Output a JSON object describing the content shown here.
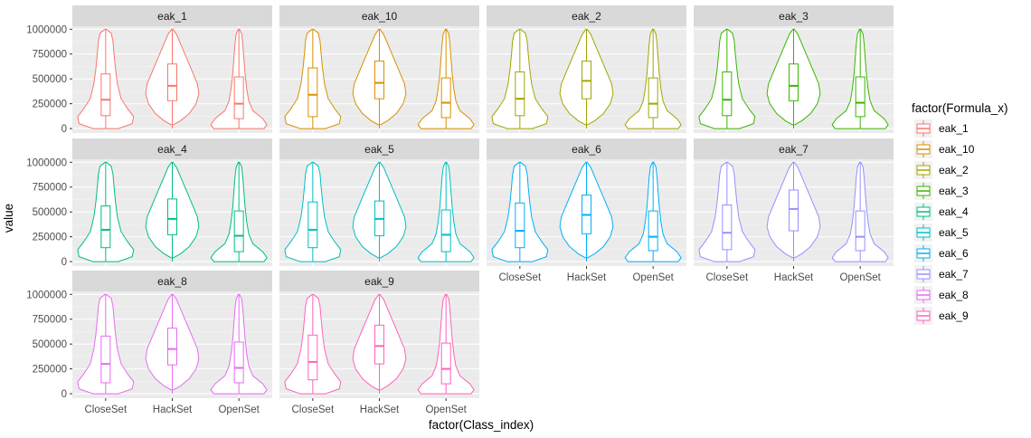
{
  "chart_data": {
    "type": "violin",
    "xlabel": "factor(Class_index)",
    "ylabel": "value",
    "categories": [
      "CloseSet",
      "HackSet",
      "OpenSet"
    ],
    "y_ticks": [
      0,
      250000,
      500000,
      750000,
      1000000
    ],
    "y_tick_labels": [
      "0",
      "250000",
      "500000",
      "750000",
      "1000000"
    ],
    "ylim": [
      -45000,
      1030000
    ],
    "grid": true,
    "legend": {
      "title": "factor(Formula_x)",
      "position": "right",
      "entries": [
        "eak_1",
        "eak_10",
        "eak_2",
        "eak_3",
        "eak_4",
        "eak_5",
        "eak_6",
        "eak_7",
        "eak_8",
        "eak_9"
      ]
    },
    "series": [
      {
        "name": "eak_1",
        "color": "#F8766D",
        "boxes": [
          {
            "category": "CloseSet",
            "q1": 130000,
            "median": 290000,
            "q3": 550000
          },
          {
            "category": "HackSet",
            "q1": 280000,
            "median": 430000,
            "q3": 650000
          },
          {
            "category": "OpenSet",
            "q1": 100000,
            "median": 250000,
            "q3": 520000
          }
        ]
      },
      {
        "name": "eak_10",
        "color": "#D89000",
        "boxes": [
          {
            "category": "CloseSet",
            "q1": 120000,
            "median": 340000,
            "q3": 610000
          },
          {
            "category": "HackSet",
            "q1": 300000,
            "median": 460000,
            "q3": 680000
          },
          {
            "category": "OpenSet",
            "q1": 110000,
            "median": 260000,
            "q3": 510000
          }
        ]
      },
      {
        "name": "eak_2",
        "color": "#A3A500",
        "boxes": [
          {
            "category": "CloseSet",
            "q1": 130000,
            "median": 300000,
            "q3": 570000
          },
          {
            "category": "HackSet",
            "q1": 300000,
            "median": 480000,
            "q3": 680000
          },
          {
            "category": "OpenSet",
            "q1": 110000,
            "median": 250000,
            "q3": 510000
          }
        ]
      },
      {
        "name": "eak_3",
        "color": "#39B600",
        "boxes": [
          {
            "category": "CloseSet",
            "q1": 130000,
            "median": 290000,
            "q3": 570000
          },
          {
            "category": "HackSet",
            "q1": 280000,
            "median": 430000,
            "q3": 650000
          },
          {
            "category": "OpenSet",
            "q1": 120000,
            "median": 260000,
            "q3": 520000
          }
        ]
      },
      {
        "name": "eak_4",
        "color": "#00BF7D",
        "boxes": [
          {
            "category": "CloseSet",
            "q1": 140000,
            "median": 320000,
            "q3": 560000
          },
          {
            "category": "HackSet",
            "q1": 270000,
            "median": 430000,
            "q3": 630000
          },
          {
            "category": "OpenSet",
            "q1": 100000,
            "median": 260000,
            "q3": 510000
          }
        ]
      },
      {
        "name": "eak_5",
        "color": "#00BFC4",
        "boxes": [
          {
            "category": "CloseSet",
            "q1": 140000,
            "median": 320000,
            "q3": 600000
          },
          {
            "category": "HackSet",
            "q1": 260000,
            "median": 430000,
            "q3": 610000
          },
          {
            "category": "OpenSet",
            "q1": 100000,
            "median": 270000,
            "q3": 520000
          }
        ]
      },
      {
        "name": "eak_6",
        "color": "#00B0F6",
        "boxes": [
          {
            "category": "CloseSet",
            "q1": 140000,
            "median": 310000,
            "q3": 590000
          },
          {
            "category": "HackSet",
            "q1": 280000,
            "median": 470000,
            "q3": 670000
          },
          {
            "category": "OpenSet",
            "q1": 110000,
            "median": 250000,
            "q3": 510000
          }
        ]
      },
      {
        "name": "eak_7",
        "color": "#9590FF",
        "boxes": [
          {
            "category": "CloseSet",
            "q1": 120000,
            "median": 290000,
            "q3": 570000
          },
          {
            "category": "HackSet",
            "q1": 310000,
            "median": 530000,
            "q3": 720000
          },
          {
            "category": "OpenSet",
            "q1": 110000,
            "median": 250000,
            "q3": 510000
          }
        ]
      },
      {
        "name": "eak_8",
        "color": "#E76BF3",
        "boxes": [
          {
            "category": "CloseSet",
            "q1": 110000,
            "median": 300000,
            "q3": 580000
          },
          {
            "category": "HackSet",
            "q1": 290000,
            "median": 450000,
            "q3": 660000
          },
          {
            "category": "OpenSet",
            "q1": 110000,
            "median": 260000,
            "q3": 520000
          }
        ]
      },
      {
        "name": "eak_9",
        "color": "#FF62BC",
        "boxes": [
          {
            "category": "CloseSet",
            "q1": 140000,
            "median": 320000,
            "q3": 590000
          },
          {
            "category": "HackSet",
            "q1": 300000,
            "median": 480000,
            "q3": 690000
          },
          {
            "category": "OpenSet",
            "q1": 100000,
            "median": 250000,
            "q3": 510000
          }
        ]
      }
    ]
  }
}
